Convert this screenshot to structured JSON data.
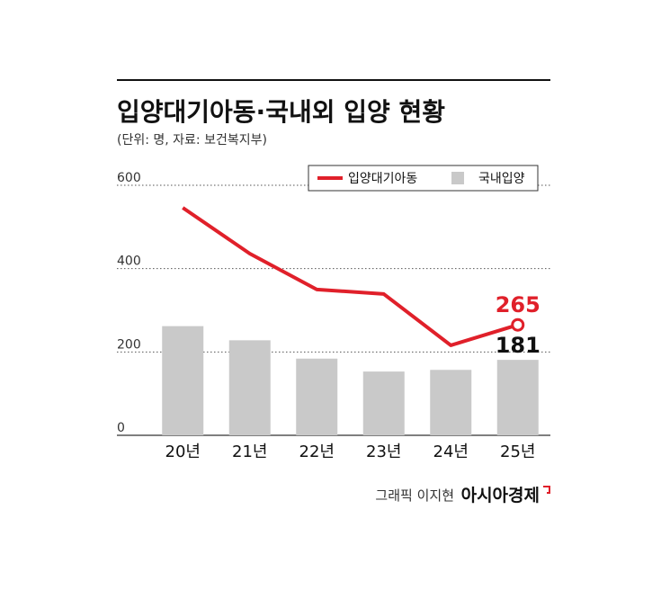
{
  "chart_data": {
    "type": "combo",
    "title": "입양대기아동·국내외 입양 현황",
    "subtitle": "(단위: 명, 자료: 보건복지부)",
    "categories": [
      "20년",
      "21년",
      "22년",
      "23년",
      "24년",
      "25년"
    ],
    "series": [
      {
        "name": "입양대기아동",
        "type": "line",
        "color": "#e0202a",
        "values": [
          546,
          436,
          350,
          339,
          216,
          265
        ]
      },
      {
        "name": "국내입양",
        "type": "bar",
        "color": "#c9c9c9",
        "values": [
          262,
          228,
          184,
          153,
          157,
          181
        ]
      }
    ],
    "ylim": [
      0,
      600
    ],
    "yticks": [
      0,
      200,
      400,
      600
    ],
    "grid": true,
    "legend": "top-right",
    "credit": "그래픽 이지현",
    "publisher": "아시아경제"
  }
}
